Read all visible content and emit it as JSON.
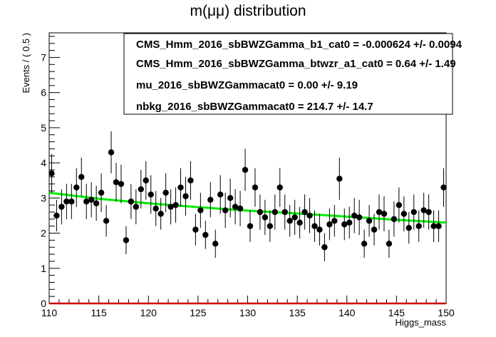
{
  "chart_data": {
    "type": "scatter",
    "title": "m(μμ) distribution",
    "xlabel": "Higgs_mass",
    "ylabel": "Events / ( 0.5 )",
    "xlim": [
      110,
      150
    ],
    "ylim": [
      0,
      7.7
    ],
    "x_ticks": [
      110,
      115,
      120,
      125,
      130,
      135,
      140,
      145,
      150
    ],
    "y_ticks": [
      0,
      1,
      2,
      3,
      4,
      5,
      6,
      7
    ],
    "series": [
      {
        "kind": "points-with-errors",
        "color": "#000000",
        "x": [
          110.25,
          110.75,
          111.25,
          111.75,
          112.25,
          112.75,
          113.25,
          113.75,
          114.25,
          114.75,
          115.25,
          115.75,
          116.25,
          116.75,
          117.25,
          117.75,
          118.25,
          118.75,
          119.25,
          119.75,
          120.25,
          120.75,
          121.25,
          121.75,
          122.25,
          122.75,
          123.25,
          123.75,
          124.25,
          124.75,
          125.25,
          125.75,
          126.25,
          126.75,
          127.25,
          127.75,
          128.25,
          128.75,
          129.25,
          129.75,
          130.25,
          130.75,
          131.25,
          131.75,
          132.25,
          132.75,
          133.25,
          133.75,
          134.25,
          134.75,
          135.25,
          135.75,
          136.25,
          136.75,
          137.25,
          137.75,
          138.25,
          138.75,
          139.25,
          139.75,
          140.25,
          140.75,
          141.25,
          141.75,
          142.25,
          142.75,
          143.25,
          143.75,
          144.25,
          144.75,
          145.25,
          145.75,
          146.25,
          146.75,
          147.25,
          147.75,
          148.25,
          148.75,
          149.25,
          149.75
        ],
        "y": [
          3.7,
          2.5,
          2.75,
          2.9,
          2.9,
          3.3,
          3.6,
          2.9,
          2.95,
          2.85,
          3.15,
          2.35,
          4.3,
          3.45,
          3.4,
          1.8,
          2.9,
          2.75,
          3.25,
          3.5,
          3.1,
          2.7,
          2.55,
          3.15,
          2.75,
          2.8,
          3.3,
          3.05,
          3.5,
          2.1,
          2.65,
          1.95,
          2.95,
          1.7,
          3.1,
          2.65,
          3.0,
          2.75,
          2.7,
          3.8,
          2.2,
          3.3,
          2.6,
          2.45,
          2.2,
          2.6,
          3.3,
          2.6,
          2.35,
          2.45,
          2.3,
          2.6,
          2.5,
          2.2,
          2.1,
          1.6,
          2.25,
          2.35,
          3.55,
          2.25,
          2.3,
          2.5,
          2.45,
          1.7,
          2.35,
          2.1,
          2.6,
          2.55,
          1.7,
          2.4,
          2.8,
          2.55,
          2.15,
          2.6,
          2.2,
          2.65,
          2.6,
          2.2,
          2.2,
          3.3
        ],
        "yerr": [
          0.55,
          0.45,
          0.5,
          0.5,
          0.5,
          0.55,
          0.55,
          0.5,
          0.5,
          0.5,
          0.55,
          0.45,
          0.6,
          0.55,
          0.55,
          0.4,
          0.5,
          0.5,
          0.55,
          0.55,
          0.55,
          0.5,
          0.45,
          0.55,
          0.5,
          0.5,
          0.55,
          0.55,
          0.55,
          0.45,
          0.5,
          0.4,
          0.5,
          0.4,
          0.55,
          0.5,
          0.55,
          0.5,
          0.5,
          0.6,
          0.45,
          0.55,
          0.5,
          0.5,
          0.45,
          0.5,
          0.55,
          0.5,
          0.45,
          0.5,
          0.45,
          0.5,
          0.5,
          0.45,
          0.45,
          0.4,
          0.45,
          0.45,
          0.6,
          0.45,
          0.45,
          0.5,
          0.5,
          0.4,
          0.45,
          0.45,
          0.5,
          0.5,
          0.4,
          0.5,
          0.5,
          0.5,
          0.45,
          0.5,
          0.45,
          0.5,
          0.5,
          0.45,
          0.45,
          0.55
        ]
      },
      {
        "kind": "fit-line",
        "color": "#00ee00",
        "x": [
          110,
          115,
          120,
          125,
          130,
          135,
          140,
          145,
          150
        ],
        "y": [
          3.15,
          2.98,
          2.85,
          2.74,
          2.64,
          2.56,
          2.47,
          2.38,
          2.3
        ]
      },
      {
        "kind": "signal-line",
        "color": "#cc0000",
        "x": [
          110,
          150
        ],
        "y": [
          0,
          0
        ]
      }
    ],
    "stat_box": [
      "CMS_Hmm_2016_sbBWZGamma_b1_cat0 = -0.000624 +/- 0.0094",
      "CMS_Hmm_2016_sbBWZGamma_btwzr_a1_cat0 =  0.64 +/- 1.49",
      "mu_2016_sbBWZGammacat0 =  0.00 +/- 9.19",
      "nbkg_2016_sbBWZGammacat0 =  214.7 +/- 14.7"
    ],
    "grid": false
  }
}
